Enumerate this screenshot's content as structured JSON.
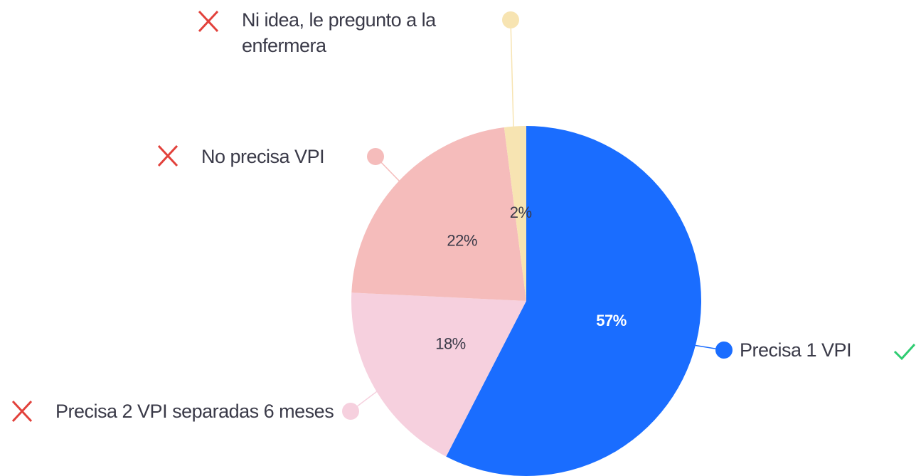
{
  "chart_data": {
    "type": "pie",
    "categories": [
      "Precisa 1 VPI",
      "Precisa 2 VPI separadas 6 meses",
      "No precisa VPI",
      "Ni idea, le pregunto a la enfermera"
    ],
    "values": [
      57,
      18,
      22,
      2
    ],
    "value_labels": [
      "57%",
      "18%",
      "22%",
      "2%"
    ],
    "colors": [
      "#1a6dff",
      "#f6d0de",
      "#f5bcbb",
      "#f7e4b2"
    ]
  }
}
